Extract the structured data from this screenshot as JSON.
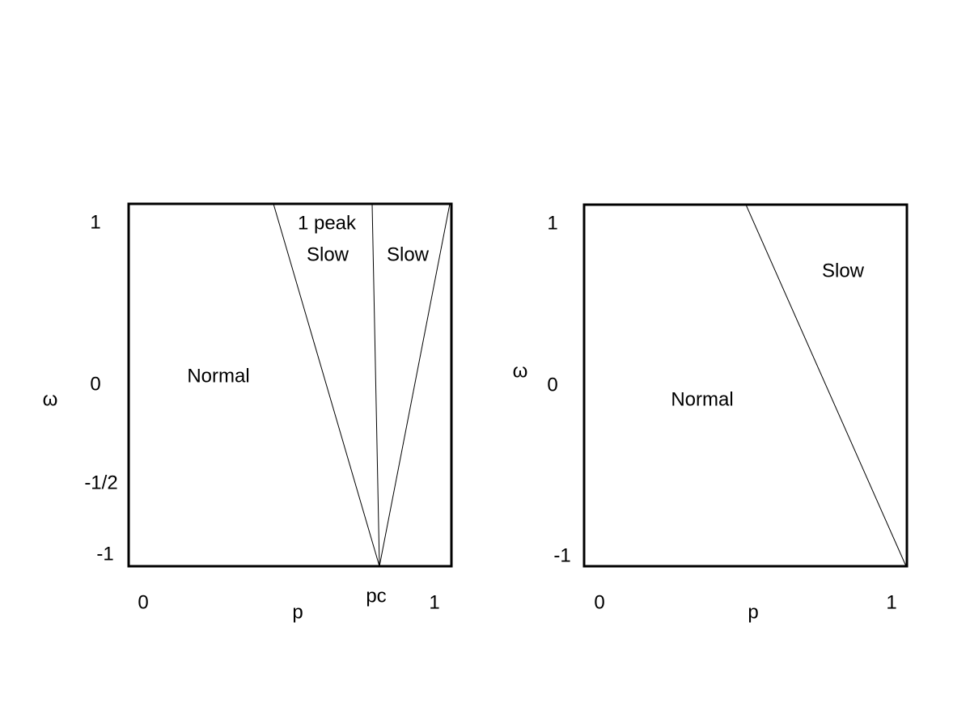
{
  "panels": [
    {
      "y_tick_labels": [
        "1",
        "0",
        "-1/2",
        "-1"
      ],
      "y_axis_label": "ω",
      "x_tick_labels": [
        "0",
        "pc",
        "1"
      ],
      "x_axis_label": "p",
      "regions": [
        "Normal",
        "1 peak",
        "Slow",
        "Slow"
      ]
    },
    {
      "y_tick_labels": [
        "1",
        "0",
        "-1"
      ],
      "y_axis_label": "ω",
      "x_tick_labels": [
        "0",
        "1"
      ],
      "x_axis_label": "p",
      "regions": [
        "Normal",
        "Slow"
      ]
    }
  ]
}
